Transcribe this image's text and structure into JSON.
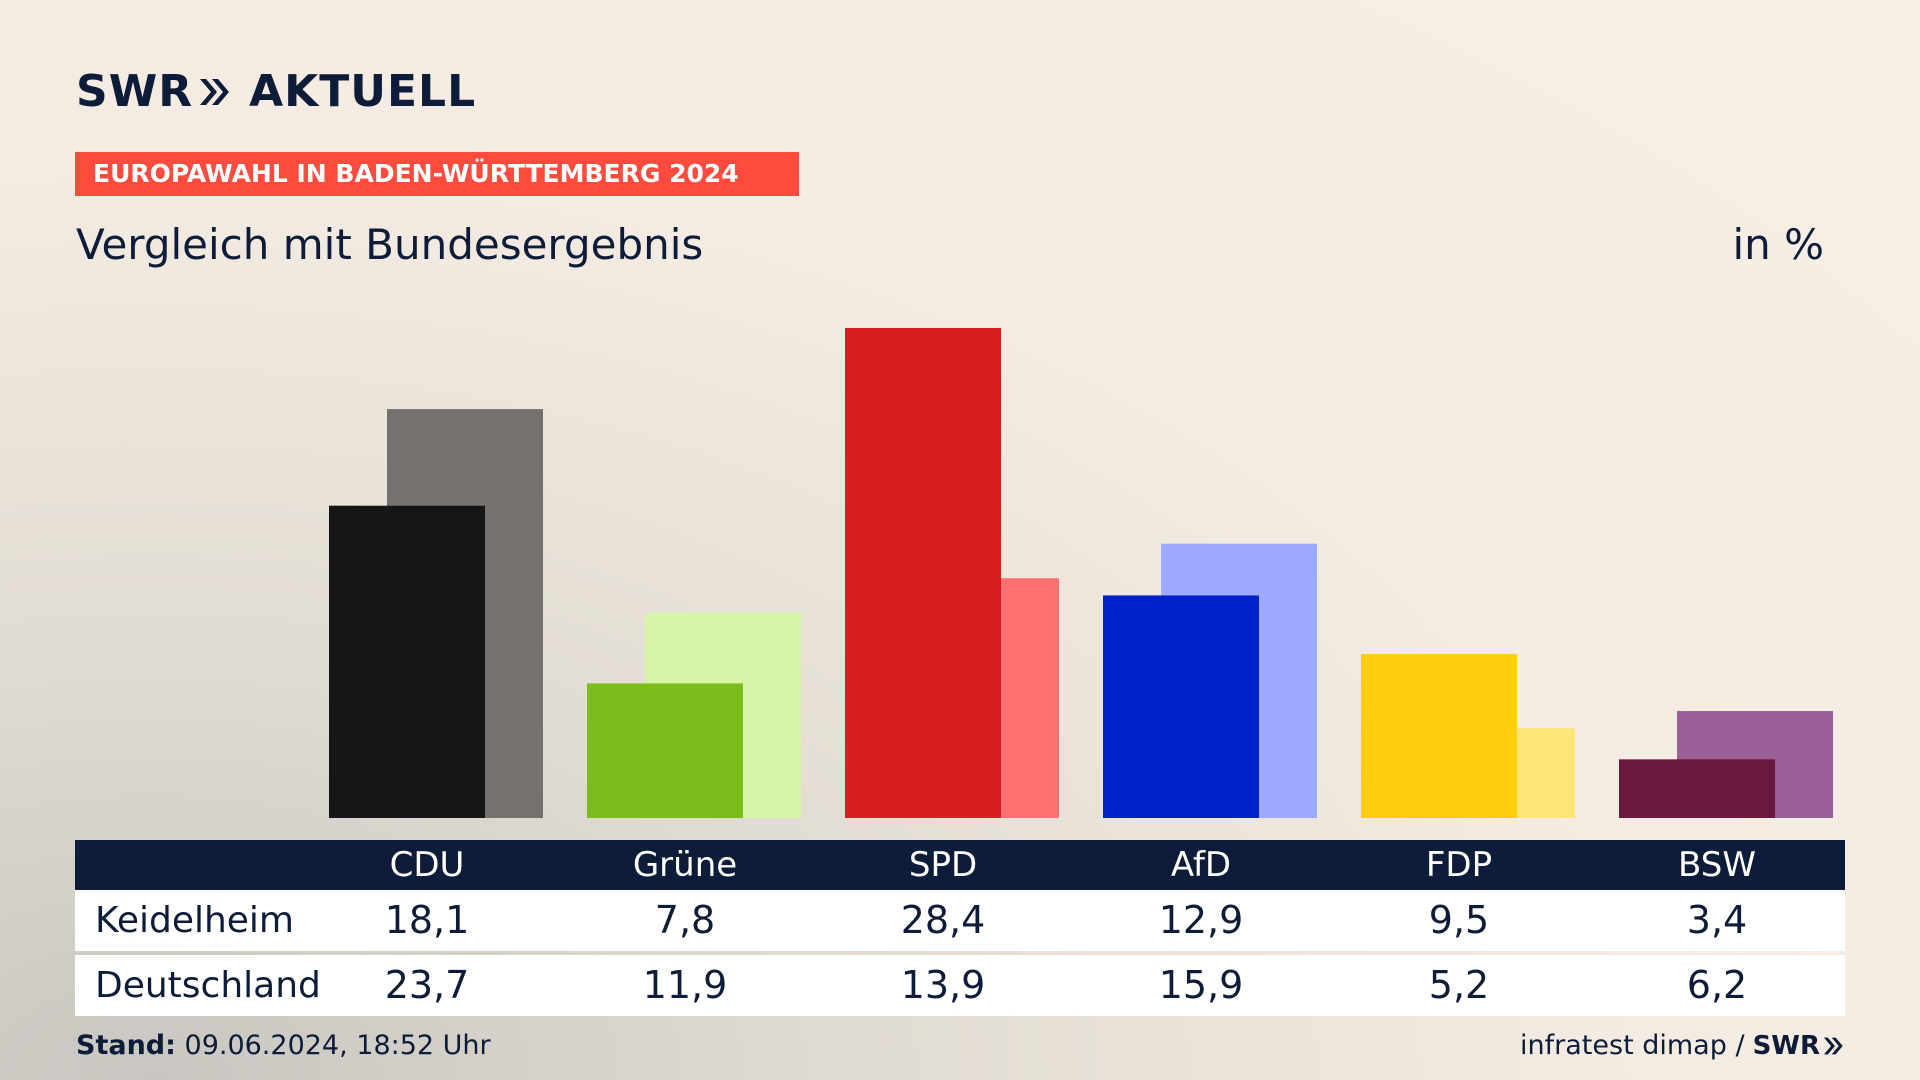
{
  "brand": {
    "swr": "SWR",
    "aktuell": "AKTUELL"
  },
  "banner": "EUROPAWAHL IN BADEN-WÜRTTEMBERG 2024",
  "subtitle": "Vergleich mit Bundesergebnis",
  "unit": "in %",
  "footer": {
    "stand_label": "Stand:",
    "stand_value": "09.06.2024, 18:52 Uhr",
    "source": "infratest dimap /",
    "source_logo": "SWR"
  },
  "rows": [
    "Keidelheim",
    "Deutschland"
  ],
  "chart_data": {
    "type": "bar",
    "categories": [
      "CDU",
      "Grüne",
      "SPD",
      "AfD",
      "FDP",
      "BSW"
    ],
    "series": [
      {
        "name": "Keidelheim",
        "values": [
          18.1,
          7.8,
          28.4,
          12.9,
          9.5,
          3.4
        ],
        "display": [
          "18,1",
          "7,8",
          "28,4",
          "12,9",
          "9,5",
          "3,4"
        ]
      },
      {
        "name": "Deutschland",
        "values": [
          23.7,
          11.9,
          13.9,
          15.9,
          5.2,
          6.2
        ],
        "display": [
          "23,7",
          "11,9",
          "13,9",
          "15,9",
          "5,2",
          "6,2"
        ]
      }
    ],
    "colors_primary": [
      "#161616",
      "#7bbd1d",
      "#d71f1f",
      "#0021c8",
      "#fece0e",
      "#6b183f"
    ],
    "colors_secondary": [
      "#74716e",
      "#d7f5a9",
      "#ff7070",
      "#9eaaff",
      "#ffe478",
      "#9c5e96"
    ],
    "ylim": [
      0,
      28.4
    ],
    "legend": "none",
    "grid": false
  }
}
